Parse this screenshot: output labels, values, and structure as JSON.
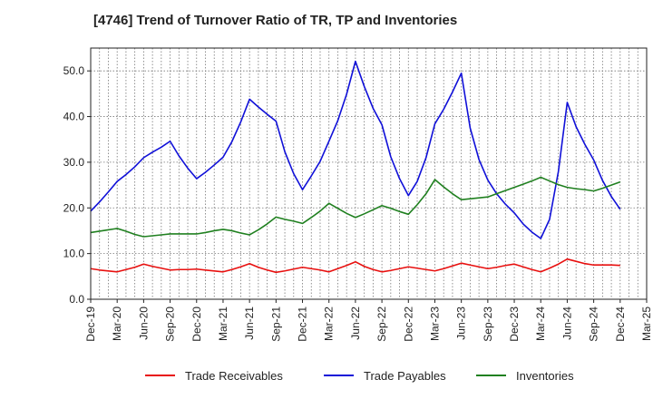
{
  "chart_data": {
    "type": "line",
    "title": "[4746]  Trend of Turnover Ratio of TR, TP and Inventories",
    "xlabel": "",
    "ylabel": "",
    "ylim": [
      0,
      55
    ],
    "y_ticks": [
      "0.0",
      "10.0",
      "20.0",
      "30.0",
      "40.0",
      "50.0"
    ],
    "x_tick_labels": [
      "Dec-19",
      "Mar-20",
      "Jun-20",
      "Sep-20",
      "Dec-20",
      "Mar-21",
      "Jun-21",
      "Sep-21",
      "Dec-21",
      "Mar-22",
      "Jun-22",
      "Sep-22",
      "Dec-22",
      "Mar-23",
      "Jun-23",
      "Sep-23",
      "Dec-23",
      "Mar-24",
      "Jun-24",
      "Sep-24",
      "Dec-24",
      "Mar-25"
    ],
    "grid": true,
    "legend_position": "bottom",
    "x": [
      "Dec-19",
      "Jan-20",
      "Feb-20",
      "Mar-20",
      "Apr-20",
      "May-20",
      "Jun-20",
      "Jul-20",
      "Aug-20",
      "Sep-20",
      "Oct-20",
      "Nov-20",
      "Dec-20",
      "Jan-21",
      "Feb-21",
      "Mar-21",
      "Apr-21",
      "May-21",
      "Jun-21",
      "Jul-21",
      "Aug-21",
      "Sep-21",
      "Oct-21",
      "Nov-21",
      "Dec-21",
      "Jan-22",
      "Feb-22",
      "Mar-22",
      "Apr-22",
      "May-22",
      "Jun-22",
      "Jul-22",
      "Aug-22",
      "Sep-22",
      "Oct-22",
      "Nov-22",
      "Dec-22",
      "Jan-23",
      "Feb-23",
      "Mar-23",
      "Apr-23",
      "May-23",
      "Jun-23",
      "Jul-23",
      "Aug-23",
      "Sep-23",
      "Oct-23",
      "Nov-23",
      "Dec-23",
      "Jan-24",
      "Feb-24",
      "Mar-24",
      "Apr-24",
      "May-24",
      "Jun-24",
      "Jul-24",
      "Aug-24",
      "Sep-24",
      "Oct-24",
      "Nov-24",
      "Dec-24"
    ],
    "series": [
      {
        "name": "Trade Receivables",
        "color": "#e8100f",
        "values": [
          6.7,
          6.4,
          6.2,
          6.0,
          6.5,
          7.0,
          7.7,
          7.2,
          6.8,
          6.4,
          6.5,
          6.5,
          6.6,
          6.4,
          6.2,
          6.0,
          6.5,
          7.1,
          7.8,
          7.0,
          6.4,
          5.9,
          6.2,
          6.6,
          7.0,
          6.7,
          6.4,
          6.0,
          6.7,
          7.4,
          8.2,
          7.2,
          6.5,
          6.0,
          6.3,
          6.7,
          7.1,
          6.8,
          6.5,
          6.2,
          6.7,
          7.3,
          7.9,
          7.5,
          7.1,
          6.7,
          7.0,
          7.4,
          7.7,
          7.1,
          6.5,
          6.0,
          6.8,
          7.7,
          8.8,
          8.3,
          7.8,
          7.5,
          7.5,
          7.5,
          7.4
        ]
      },
      {
        "name": "Trade Payables",
        "color": "#1010d8",
        "values": [
          19.3,
          21.3,
          23.5,
          25.8,
          27.3,
          29.0,
          31.0,
          32.2,
          33.3,
          34.6,
          31.4,
          28.7,
          26.4,
          27.8,
          29.4,
          31.1,
          34.5,
          38.8,
          43.8,
          42.1,
          40.5,
          39.0,
          32.3,
          27.5,
          24.0,
          27.0,
          30.2,
          34.6,
          39.1,
          44.9,
          52.1,
          46.6,
          41.8,
          38.2,
          31.2,
          26.4,
          22.7,
          25.8,
          31.0,
          38.4,
          41.6,
          45.4,
          49.5,
          37.5,
          30.6,
          26.1,
          23.1,
          20.8,
          18.9,
          16.5,
          14.7,
          13.3,
          17.5,
          28.0,
          43.1,
          37.8,
          33.9,
          30.5,
          26.0,
          22.5,
          19.7
        ]
      },
      {
        "name": "Inventories",
        "color": "#208020",
        "values": [
          14.6,
          14.9,
          15.2,
          15.5,
          14.9,
          14.2,
          13.7,
          13.9,
          14.1,
          14.3,
          14.3,
          14.3,
          14.3,
          14.6,
          15.0,
          15.3,
          15.0,
          14.5,
          14.1,
          15.2,
          16.5,
          18.0,
          17.5,
          17.1,
          16.6,
          17.9,
          19.3,
          21.0,
          19.9,
          18.8,
          17.9,
          18.7,
          19.6,
          20.5,
          19.9,
          19.2,
          18.6,
          20.7,
          23.1,
          26.2,
          24.6,
          23.1,
          21.8,
          22.0,
          22.2,
          22.4,
          23.1,
          23.8,
          24.5,
          25.2,
          25.9,
          26.7,
          25.9,
          25.1,
          24.5,
          24.2,
          24.0,
          23.7,
          24.3,
          25.0,
          25.7
        ]
      }
    ]
  }
}
